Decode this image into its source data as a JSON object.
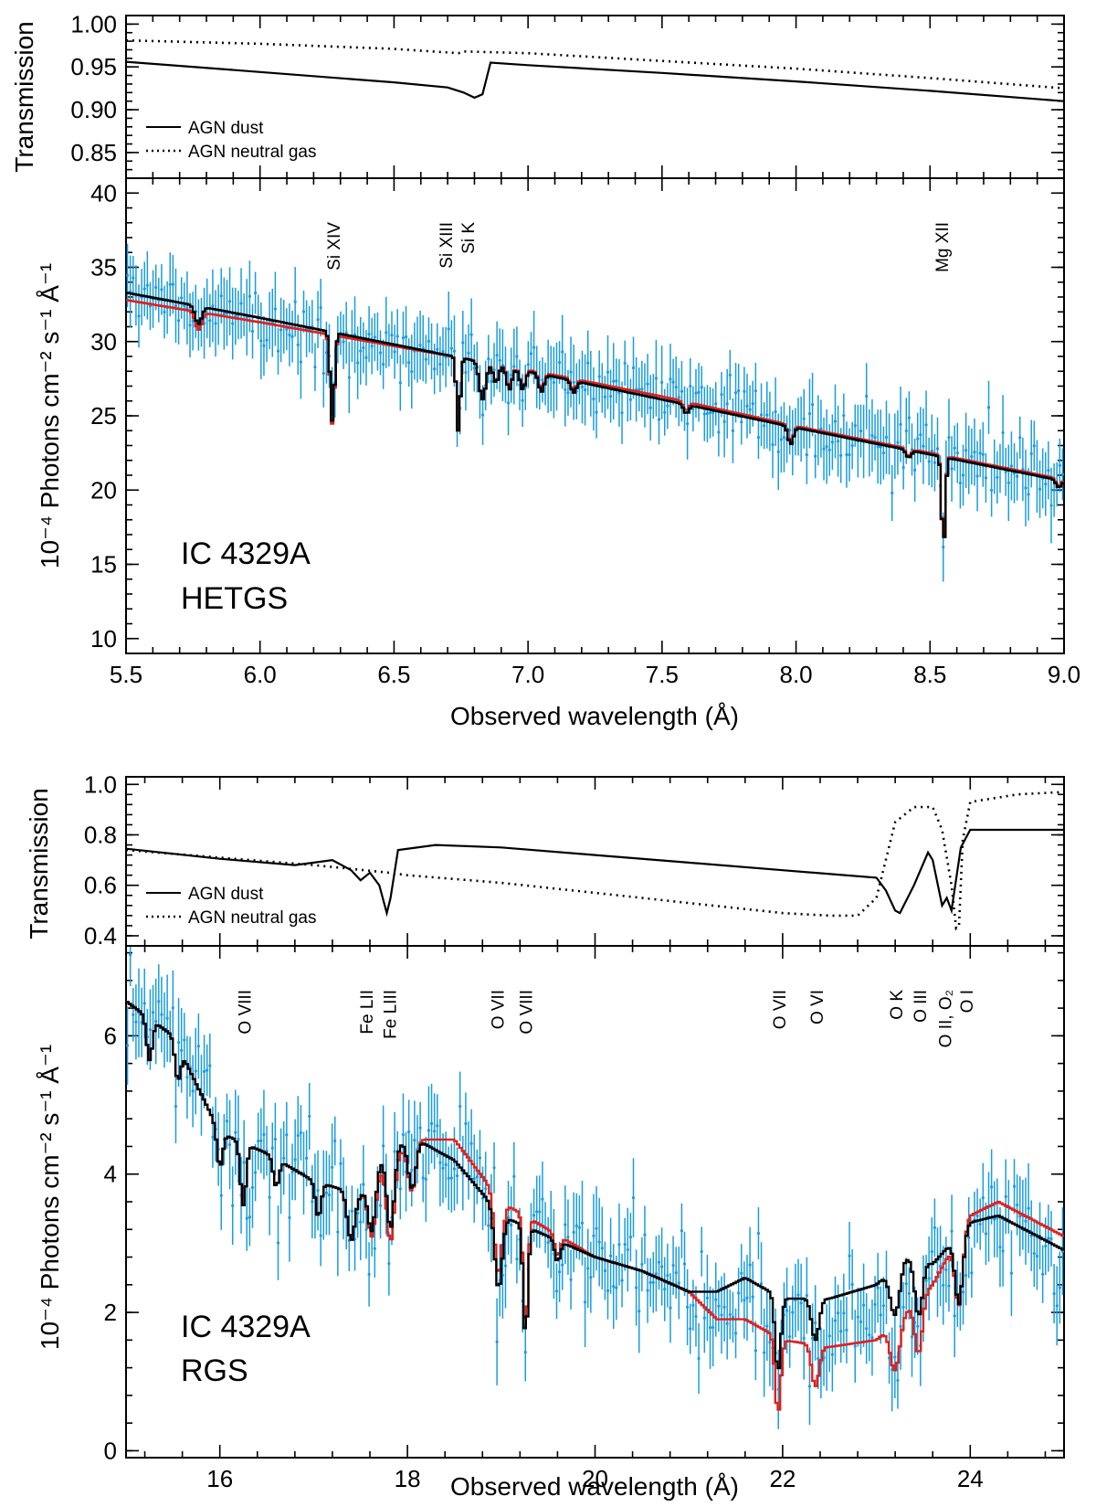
{
  "colors": {
    "data": "#1a9ce0",
    "model_black": "#000000",
    "model_red": "#e0201b"
  },
  "chart_data": [
    {
      "id": "hetgs",
      "type": "line",
      "xlabel": "Observed wavelength (Å)",
      "xlim": [
        5.5,
        9.0
      ],
      "xticks": [
        "5.5",
        "6.0",
        "6.5",
        "7.0",
        "7.5",
        "8.0",
        "8.5",
        "9.0"
      ],
      "xtick_values": [
        5.5,
        6.0,
        6.5,
        7.0,
        7.5,
        8.0,
        8.5,
        9.0
      ],
      "transmission": {
        "ylabel": "Transmission",
        "ylim": [
          0.82,
          1.01
        ],
        "yticks": [
          "0.85",
          "0.90",
          "0.95",
          "1.00"
        ],
        "ytick_values": [
          0.85,
          0.9,
          0.95,
          1.0
        ],
        "legend": [
          "AGN dust",
          "AGN neutral gas"
        ],
        "legend_loc": "lower-left",
        "series": [
          {
            "name": "AGN dust",
            "style": "solid",
            "x": [
              5.5,
              6.0,
              6.5,
              6.7,
              6.76,
              6.8,
              6.83,
              6.86,
              7.0,
              7.5,
              8.0,
              8.5,
              9.0
            ],
            "y": [
              0.956,
              0.944,
              0.932,
              0.926,
              0.92,
              0.914,
              0.918,
              0.955,
              0.952,
              0.943,
              0.933,
              0.922,
              0.91
            ]
          },
          {
            "name": "AGN neutral gas",
            "style": "dotted",
            "x": [
              5.5,
              6.0,
              6.5,
              6.74,
              6.76,
              7.0,
              7.5,
              8.0,
              8.5,
              9.0
            ],
            "y": [
              0.981,
              0.977,
              0.971,
              0.966,
              0.968,
              0.966,
              0.957,
              0.948,
              0.937,
              0.925
            ]
          }
        ]
      },
      "spectrum": {
        "ylabel": "10⁻⁴ Photons cm⁻² s⁻¹ Å⁻¹",
        "ylim": [
          9,
          41
        ],
        "yticks": [
          "10",
          "15",
          "20",
          "25",
          "30",
          "35",
          "40"
        ],
        "ytick_values": [
          10,
          15,
          20,
          25,
          30,
          35,
          40
        ],
        "title_lines": [
          "IC 4329A",
          "HETGS"
        ],
        "continuum": {
          "x": [
            5.5,
            6.0,
            6.5,
            7.0,
            7.5,
            8.0,
            8.5,
            9.0
          ],
          "y": [
            33.3,
            31.6,
            29.8,
            28.0,
            26.1,
            24.2,
            22.4,
            20.6
          ]
        },
        "red_offset": [
          -0.5,
          -0.3,
          -0.1,
          0.1,
          0.2,
          0.1,
          0.1,
          0.1
        ],
        "absorption_lines": [
          {
            "x": 5.77,
            "depth": 1.2,
            "width": 0.012
          },
          {
            "x": 6.27,
            "depth": 6.0,
            "width": 0.008
          },
          {
            "x": 6.74,
            "depth": 5.0,
            "width": 0.007
          },
          {
            "x": 6.83,
            "depth": 2.5,
            "width": 0.012
          },
          {
            "x": 6.88,
            "depth": 1.2,
            "width": 0.01
          },
          {
            "x": 6.93,
            "depth": 1.5,
            "width": 0.01
          },
          {
            "x": 6.98,
            "depth": 1.3,
            "width": 0.01
          },
          {
            "x": 7.05,
            "depth": 1.2,
            "width": 0.01
          },
          {
            "x": 7.17,
            "depth": 0.8,
            "width": 0.01
          },
          {
            "x": 7.59,
            "depth": 0.6,
            "width": 0.01
          },
          {
            "x": 7.98,
            "depth": 1.2,
            "width": 0.01
          },
          {
            "x": 8.42,
            "depth": 0.5,
            "width": 0.01
          },
          {
            "x": 8.55,
            "depth": 6.0,
            "width": 0.007
          },
          {
            "x": 8.98,
            "depth": 0.5,
            "width": 0.01
          }
        ],
        "line_ids": [
          {
            "x": 6.27,
            "labels": [
              "Si XIV"
            ]
          },
          {
            "x": 6.73,
            "labels": [
              "Si XIII",
              "Si K"
            ]
          },
          {
            "x": 8.54,
            "labels": [
              "Mg XII"
            ]
          }
        ],
        "noise": {
          "scale": 1.4,
          "err": 2.0,
          "seed": 7
        }
      }
    },
    {
      "id": "rgs",
      "type": "line",
      "xlabel": "Observed wavelength (Å)",
      "xlim": [
        15.0,
        25.0
      ],
      "xticks": [
        "16",
        "18",
        "20",
        "22",
        "24"
      ],
      "xtick_values": [
        16,
        18,
        20,
        22,
        24
      ],
      "transmission": {
        "ylabel": "Transmission",
        "ylim": [
          0.36,
          1.03
        ],
        "yticks": [
          "0.4",
          "0.6",
          "0.8",
          "1.0"
        ],
        "ytick_values": [
          0.4,
          0.6,
          0.8,
          1.0
        ],
        "legend": [
          "AGN dust",
          "AGN neutral gas"
        ],
        "legend_loc": "lower-left",
        "series": [
          {
            "name": "AGN dust",
            "style": "solid",
            "x": [
              15.0,
              16.0,
              16.8,
              17.2,
              17.4,
              17.5,
              17.6,
              17.7,
              17.78,
              17.82,
              17.9,
              18.3,
              19.0,
              20.0,
              21.0,
              22.0,
              23.0,
              23.1,
              23.2,
              23.25,
              23.4,
              23.55,
              23.6,
              23.7,
              23.75,
              23.8,
              23.9,
              24.0,
              25.0
            ],
            "y": [
              0.745,
              0.705,
              0.68,
              0.7,
              0.66,
              0.62,
              0.65,
              0.6,
              0.49,
              0.55,
              0.74,
              0.76,
              0.75,
              0.72,
              0.69,
              0.66,
              0.63,
              0.58,
              0.5,
              0.49,
              0.6,
              0.73,
              0.7,
              0.52,
              0.55,
              0.5,
              0.75,
              0.82,
              0.82
            ]
          },
          {
            "name": "AGN neutral gas",
            "style": "dotted",
            "x": [
              15.0,
              16.0,
              17.0,
              17.8,
              18.0,
              19.0,
              20.0,
              21.0,
              21.5,
              22.0,
              22.5,
              22.8,
              23.0,
              23.2,
              23.4,
              23.6,
              23.7,
              23.8,
              23.85,
              23.88,
              23.92,
              24.0,
              24.5,
              25.0
            ],
            "y": [
              0.74,
              0.71,
              0.68,
              0.65,
              0.64,
              0.61,
              0.57,
              0.53,
              0.51,
              0.49,
              0.48,
              0.48,
              0.55,
              0.85,
              0.91,
              0.91,
              0.82,
              0.6,
              0.43,
              0.44,
              0.78,
              0.93,
              0.96,
              0.97
            ]
          }
        ]
      },
      "spectrum": {
        "ylabel": "10⁻⁴ Photons cm⁻² s⁻¹ Å⁻¹",
        "ylim": [
          -0.1,
          7.3
        ],
        "yticks": [
          "0",
          "2",
          "4",
          "6"
        ],
        "ytick_values": [
          0,
          2,
          4,
          6
        ],
        "title_lines": [
          "IC 4329A",
          "RGS"
        ],
        "continuum": {
          "x": [
            15.0,
            15.5,
            16.0,
            16.5,
            17.0,
            17.5,
            17.8,
            18.1,
            18.5,
            19.0,
            19.5,
            20.0,
            20.5,
            21.0,
            21.3,
            21.6,
            22.0,
            22.5,
            23.0,
            23.3,
            23.6,
            24.0,
            24.3,
            25.0
          ],
          "y": [
            6.5,
            6.0,
            4.6,
            4.3,
            3.9,
            3.7,
            4.4,
            4.5,
            4.2,
            3.4,
            3.1,
            2.8,
            2.6,
            2.3,
            2.3,
            2.5,
            2.2,
            2.2,
            2.4,
            2.8,
            2.7,
            3.3,
            3.4,
            2.9
          ]
        },
        "red_offset": [
          0.0,
          0.0,
          0.0,
          0.0,
          0.0,
          0.0,
          -0.2,
          0.0,
          0.3,
          0.2,
          0.1,
          0.0,
          0.0,
          0.0,
          -0.4,
          -0.6,
          -0.6,
          -0.7,
          -0.8,
          -0.8,
          -0.3,
          0.1,
          0.2,
          0.2
        ],
        "absorption_lines": [
          {
            "x": 15.25,
            "depth": 0.6,
            "width": 0.03
          },
          {
            "x": 15.55,
            "depth": 0.5,
            "width": 0.03
          },
          {
            "x": 16.0,
            "depth": 0.5,
            "width": 0.03
          },
          {
            "x": 16.25,
            "depth": 0.9,
            "width": 0.03
          },
          {
            "x": 16.6,
            "depth": 0.4,
            "width": 0.03
          },
          {
            "x": 17.05,
            "depth": 0.5,
            "width": 0.03
          },
          {
            "x": 17.4,
            "depth": 0.7,
            "width": 0.04
          },
          {
            "x": 17.62,
            "depth": 0.8,
            "width": 0.04
          },
          {
            "x": 17.82,
            "depth": 1.2,
            "width": 0.04
          },
          {
            "x": 18.05,
            "depth": 0.7,
            "width": 0.04
          },
          {
            "x": 18.97,
            "depth": 1.1,
            "width": 0.04
          },
          {
            "x": 19.26,
            "depth": 1.6,
            "width": 0.025
          },
          {
            "x": 19.6,
            "depth": 0.3,
            "width": 0.03
          },
          {
            "x": 21.95,
            "depth": 1.1,
            "width": 0.03
          },
          {
            "x": 22.35,
            "depth": 0.6,
            "width": 0.04
          },
          {
            "x": 23.2,
            "depth": 0.7,
            "width": 0.05
          },
          {
            "x": 23.45,
            "depth": 0.8,
            "width": 0.04
          },
          {
            "x": 23.88,
            "depth": 1.0,
            "width": 0.04
          }
        ],
        "line_ids": [
          {
            "x": 16.25,
            "labels": [
              "O VIII"
            ]
          },
          {
            "x": 17.55,
            "labels": [
              "Fe LII"
            ]
          },
          {
            "x": 17.8,
            "labels": [
              "Fe LIII"
            ]
          },
          {
            "x": 18.95,
            "labels": [
              "O VII"
            ]
          },
          {
            "x": 19.25,
            "labels": [
              "O VIII"
            ]
          },
          {
            "x": 21.95,
            "labels": [
              "O VII"
            ]
          },
          {
            "x": 22.35,
            "labels": [
              "O VI"
            ]
          },
          {
            "x": 23.2,
            "labels": [
              "O K"
            ]
          },
          {
            "x": 23.45,
            "labels": [
              "O III"
            ]
          },
          {
            "x": 23.72,
            "labels": [
              "O II, O₂"
            ]
          },
          {
            "x": 23.95,
            "labels": [
              "O I"
            ]
          }
        ],
        "noise": {
          "scale": 0.55,
          "err": 0.5,
          "seed": 13
        }
      }
    }
  ]
}
